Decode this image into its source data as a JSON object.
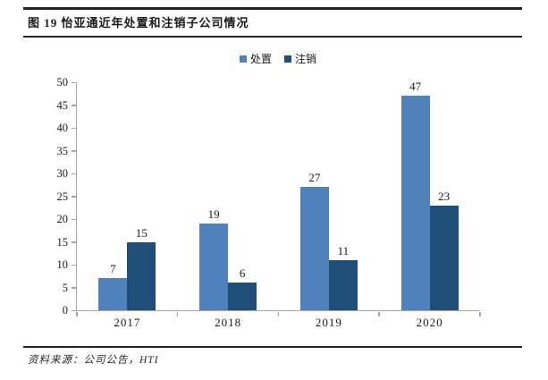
{
  "figure": {
    "title": "图 19 怡亚通近年处置和注销子公司情况",
    "source_note": "资料来源：公司公告，HTI"
  },
  "colors": {
    "series_dispose": "#4F81BD",
    "series_deregister": "#1F4E79",
    "axis": "#A6A6A6",
    "rule": "#262626",
    "text": "#1A1A1A"
  },
  "chart_data": {
    "type": "bar",
    "title": "",
    "xlabel": "",
    "ylabel": "",
    "categories": [
      "2017",
      "2018",
      "2019",
      "2020"
    ],
    "series": [
      {
        "name": "处置",
        "color": "#4F81BD",
        "values": [
          7,
          19,
          27,
          47
        ]
      },
      {
        "name": "注销",
        "color": "#1F4E79",
        "values": [
          15,
          6,
          11,
          23
        ]
      }
    ],
    "ylim": [
      0,
      50
    ],
    "yticks": [
      0,
      5,
      10,
      15,
      20,
      25,
      30,
      35,
      40,
      45,
      50
    ],
    "grid": false,
    "data_labels": true,
    "legend_position": "top-center"
  }
}
